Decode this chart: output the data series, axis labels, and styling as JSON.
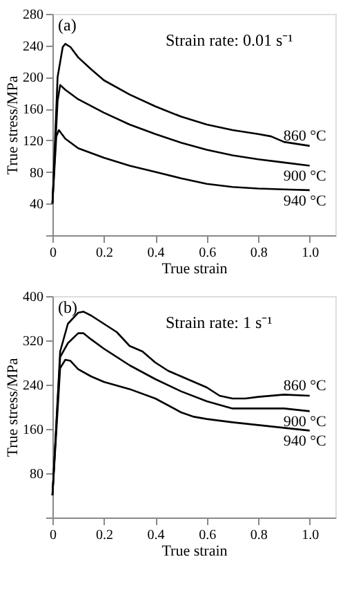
{
  "chart_data": [
    {
      "type": "line",
      "title": "(a)",
      "subtitle": "Strain rate: 0.01 s⁻¹",
      "xlabel": "True strain",
      "ylabel": "True stress/MPa",
      "xlim": [
        0,
        1.1
      ],
      "xticks": [
        0,
        0.2,
        0.4,
        0.6,
        0.8,
        {
          "value": 1,
          "label": "1.0"
        }
      ],
      "ylim": [
        0,
        280
      ],
      "yticks": [
        {
          "value": 0,
          "label": null
        },
        40,
        80,
        120,
        160,
        200,
        240,
        280
      ],
      "grid": false,
      "marker": "none",
      "line_style": "solid",
      "series": [
        {
          "name": "860 °C",
          "color": "#000000",
          "x": [
            0,
            0.02,
            0.04,
            0.05,
            0.07,
            0.1,
            0.15,
            0.2,
            0.3,
            0.4,
            0.5,
            0.6,
            0.7,
            0.8,
            0.85,
            0.9,
            1.0
          ],
          "values": [
            40,
            200,
            238,
            242,
            238,
            225,
            210,
            196,
            178,
            163,
            150,
            140,
            133,
            128,
            125,
            118,
            113
          ]
        },
        {
          "name": "900 °C",
          "color": "#000000",
          "x": [
            0,
            0.02,
            0.03,
            0.05,
            0.1,
            0.2,
            0.3,
            0.4,
            0.5,
            0.6,
            0.7,
            0.8,
            0.9,
            1.0
          ],
          "values": [
            40,
            170,
            190,
            184,
            172,
            155,
            140,
            128,
            117,
            108,
            101,
            96,
            92,
            88
          ]
        },
        {
          "name": "940 °C",
          "color": "#000000",
          "x": [
            0,
            0.015,
            0.025,
            0.05,
            0.1,
            0.2,
            0.3,
            0.4,
            0.5,
            0.6,
            0.7,
            0.8,
            0.9,
            1.0
          ],
          "values": [
            40,
            125,
            133,
            122,
            110,
            98,
            88,
            80,
            72,
            65,
            61,
            59,
            58,
            57
          ]
        }
      ]
    },
    {
      "type": "line",
      "title": "(b)",
      "subtitle": "Strain rate: 1 s⁻¹",
      "xlabel": "True strain",
      "ylabel": "True stress/MPa",
      "xlim": [
        0,
        1.1
      ],
      "xticks": [
        0,
        0.2,
        0.4,
        0.6,
        0.8,
        {
          "value": 1,
          "label": "1.0"
        }
      ],
      "ylim": [
        0,
        400
      ],
      "yticks": [
        {
          "value": 0,
          "label": null
        },
        80,
        160,
        240,
        320,
        400
      ],
      "grid": false,
      "marker": "none",
      "line_style": "solid",
      "series": [
        {
          "name": "860 °C",
          "color": "#000000",
          "x": [
            0,
            0.03,
            0.06,
            0.1,
            0.12,
            0.15,
            0.2,
            0.25,
            0.3,
            0.35,
            0.4,
            0.45,
            0.5,
            0.55,
            0.6,
            0.65,
            0.7,
            0.75,
            0.8,
            0.9,
            1.0
          ],
          "values": [
            40,
            300,
            350,
            370,
            372,
            365,
            350,
            335,
            310,
            300,
            280,
            265,
            255,
            245,
            235,
            220,
            215,
            215,
            218,
            222,
            220
          ]
        },
        {
          "name": "900 °C",
          "color": "#000000",
          "x": [
            0,
            0.03,
            0.06,
            0.1,
            0.12,
            0.15,
            0.2,
            0.3,
            0.4,
            0.5,
            0.6,
            0.7,
            0.8,
            0.9,
            1.0
          ],
          "values": [
            40,
            290,
            315,
            333,
            333,
            322,
            305,
            275,
            250,
            228,
            210,
            197,
            197,
            197,
            192
          ]
        },
        {
          "name": "940 °C",
          "color": "#000000",
          "x": [
            0,
            0.03,
            0.05,
            0.07,
            0.1,
            0.15,
            0.2,
            0.3,
            0.4,
            0.5,
            0.55,
            0.6,
            0.7,
            0.8,
            0.9,
            1.0
          ],
          "values": [
            40,
            270,
            285,
            283,
            268,
            255,
            245,
            232,
            215,
            190,
            182,
            178,
            172,
            167,
            162,
            157
          ]
        }
      ]
    }
  ]
}
